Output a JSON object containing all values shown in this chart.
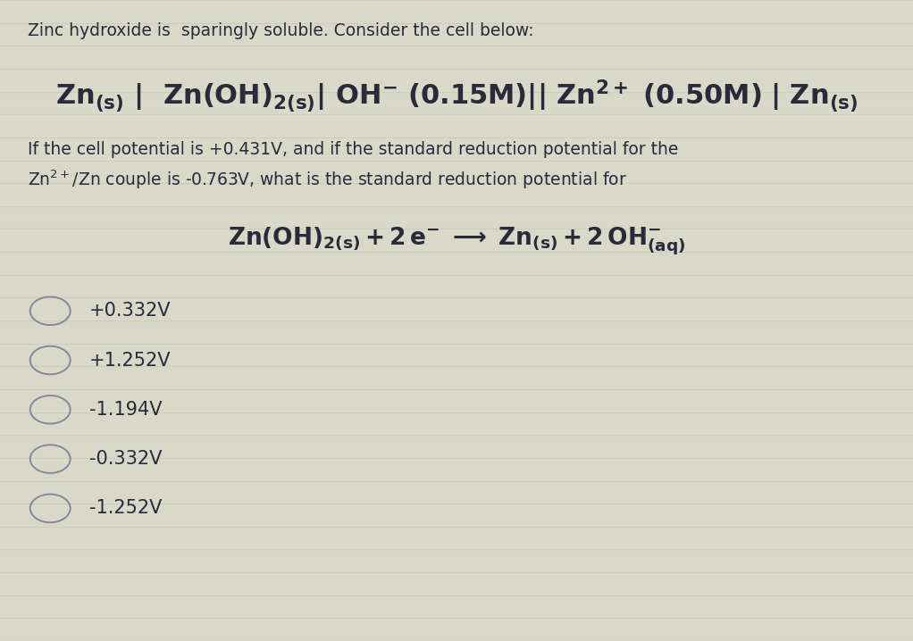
{
  "background_color": "#d8d9c8",
  "line_color": "#c8c9b8",
  "text_color": "#2a2a3a",
  "circle_color": "#888899",
  "title_line1": "Zinc hydroxide is  sparingly soluble. Consider the cell below:",
  "choices": [
    "+0.332V",
    "+1.252V",
    "-1.194V",
    "-0.332V",
    "-1.252V"
  ],
  "title_fontsize": 13.5,
  "cell_fontsize": 22,
  "body_fontsize": 13.5,
  "reaction_fontsize": 19,
  "choice_fontsize": 15,
  "n_lines": 28
}
